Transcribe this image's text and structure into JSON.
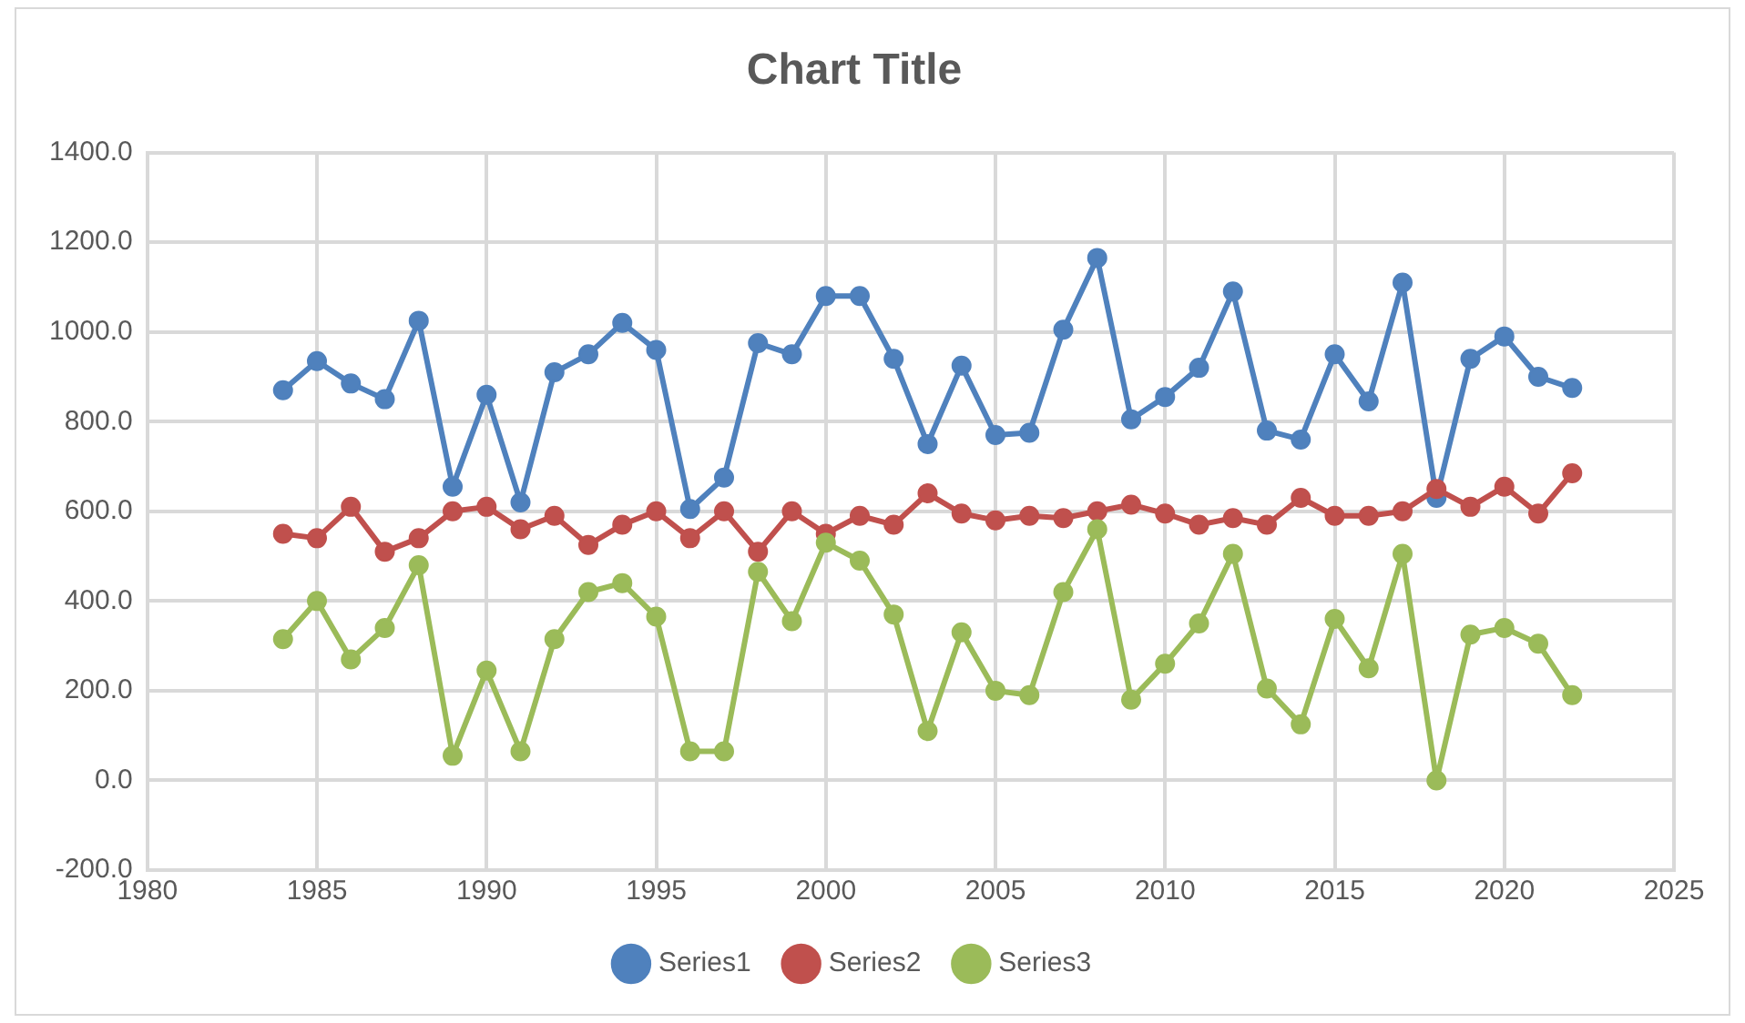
{
  "chart_data": {
    "type": "line",
    "title": "Chart Title",
    "x": [
      1984,
      1985,
      1986,
      1987,
      1988,
      1989,
      1990,
      1991,
      1992,
      1993,
      1994,
      1995,
      1996,
      1997,
      1998,
      1999,
      2000,
      2001,
      2002,
      2003,
      2004,
      2005,
      2006,
      2007,
      2008,
      2009,
      2010,
      2011,
      2012,
      2013,
      2014,
      2015,
      2016,
      2017,
      2018,
      2019,
      2020,
      2021,
      2022
    ],
    "series": [
      {
        "name": "Series1",
        "color": "#4f81bd",
        "values": [
          870,
          935,
          885,
          850,
          1025,
          655,
          860,
          620,
          910,
          950,
          1020,
          960,
          605,
          675,
          975,
          950,
          1080,
          1080,
          940,
          750,
          925,
          770,
          775,
          1005,
          1165,
          805,
          855,
          920,
          1090,
          780,
          760,
          950,
          845,
          1110,
          630,
          940,
          990,
          900,
          875
        ]
      },
      {
        "name": "Series2",
        "color": "#c0504d",
        "values": [
          550,
          540,
          610,
          510,
          540,
          600,
          610,
          560,
          590,
          525,
          570,
          600,
          540,
          600,
          510,
          600,
          550,
          590,
          570,
          640,
          595,
          580,
          590,
          585,
          600,
          615,
          595,
          570,
          585,
          570,
          630,
          590,
          590,
          600,
          650,
          610,
          655,
          595,
          685
        ]
      },
      {
        "name": "Series3",
        "color": "#9bbb59",
        "values": [
          315,
          400,
          270,
          340,
          480,
          55,
          245,
          65,
          315,
          420,
          440,
          365,
          65,
          65,
          465,
          355,
          530,
          490,
          370,
          110,
          330,
          200,
          190,
          420,
          560,
          180,
          260,
          350,
          505,
          205,
          125,
          360,
          250,
          505,
          0,
          325,
          340,
          305,
          190
        ]
      }
    ],
    "xlim": [
      1980,
      2025
    ],
    "xticks": [
      1980,
      1985,
      1990,
      1995,
      2000,
      2005,
      2010,
      2015,
      2020,
      2025
    ],
    "ylim": [
      -200,
      1400
    ],
    "yticks": [
      {
        "value": -200,
        "label": "-200.0"
      },
      {
        "value": 0,
        "label": "0.0"
      },
      {
        "value": 200,
        "label": "200.0"
      },
      {
        "value": 400,
        "label": "400.0"
      },
      {
        "value": 600,
        "label": "600.0"
      },
      {
        "value": 800,
        "label": "800.0"
      },
      {
        "value": 1000,
        "label": "1000.0"
      },
      {
        "value": 1200,
        "label": "1200.0"
      },
      {
        "value": 1400,
        "label": "1400.0"
      }
    ],
    "grid": true,
    "legend": "bottom",
    "marker": "circle",
    "line_style": "solid"
  }
}
